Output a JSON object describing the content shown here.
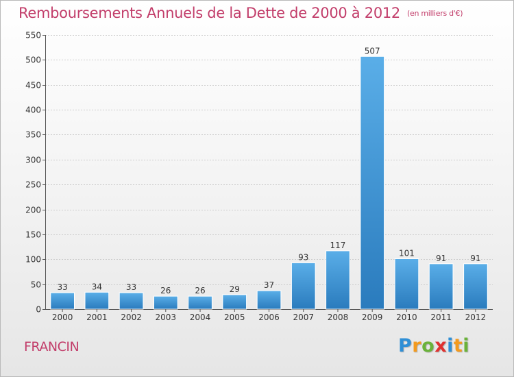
{
  "commune": "FRANCIN",
  "logo": {
    "text": "Proxiti",
    "letters": [
      {
        "char": "P",
        "color": "#2f8fd6"
      },
      {
        "char": "r",
        "color": "#f39a1e"
      },
      {
        "char": "o",
        "color": "#6ab23a"
      },
      {
        "char": "x",
        "color": "#e0312f"
      },
      {
        "char": "i",
        "color": "#2f8fd6"
      },
      {
        "char": "t",
        "color": "#f39a1e"
      },
      {
        "char": "i",
        "color": "#6ab23a"
      }
    ]
  },
  "colors": {
    "title": "#c23d6a",
    "bar_light": "#5aaee8",
    "bar_dark": "#2a7bbd"
  },
  "chart_data": {
    "type": "bar",
    "title": "Remboursements Annuels de la Dette de 2000 à 2012",
    "subtitle": "(en milliers d'€)",
    "xlabel": "",
    "ylabel": "",
    "categories": [
      "2000",
      "2001",
      "2002",
      "2003",
      "2004",
      "2005",
      "2006",
      "2007",
      "2008",
      "2009",
      "2010",
      "2011",
      "2012"
    ],
    "values": [
      33,
      34,
      33,
      26,
      26,
      29,
      37,
      93,
      117,
      507,
      101,
      91,
      91
    ],
    "data_labels": [
      "33",
      "34",
      "33",
      "26",
      "26",
      "29",
      "37",
      "93",
      "117",
      "507",
      "101",
      "91",
      "91"
    ],
    "ylim": [
      0,
      550
    ],
    "yticks": [
      0,
      50,
      100,
      150,
      200,
      250,
      300,
      350,
      400,
      450,
      500,
      550
    ],
    "grid": true,
    "legend": "none"
  }
}
